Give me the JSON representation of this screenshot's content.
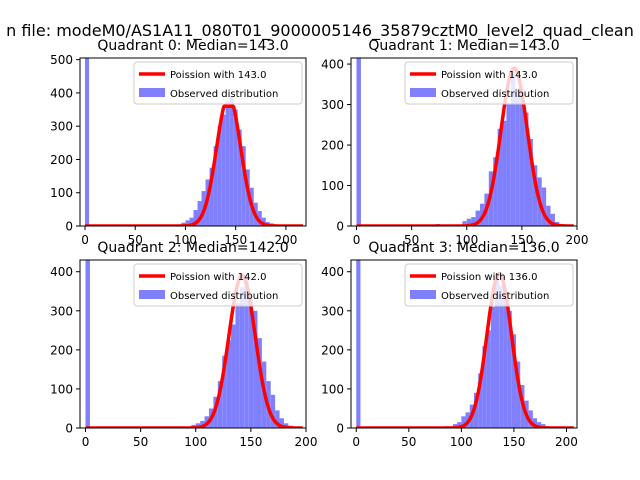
{
  "figure": {
    "suptitle": "n file: modeM0/AS1A11_080T01_9000005146_35879cztM0_level2_quad_clean"
  },
  "colors": {
    "histogram": "#8080ff",
    "poisson": "#ff0000",
    "axes": "#000000",
    "background": "#ffffff"
  },
  "chart_data": [
    {
      "type": "bar",
      "quadrant": 0,
      "title": "Quadrant 0: Median=143.0",
      "median": 143.0,
      "xlim": [
        -5,
        220
      ],
      "ylim": [
        0,
        505
      ],
      "xticks": [
        0,
        50,
        100,
        150,
        200
      ],
      "yticks": [
        0,
        100,
        200,
        300,
        400,
        500
      ],
      "legend": [
        "Poission with 143.0",
        "Observed distribution"
      ],
      "legend_loc": "upper right",
      "bin_width": 4,
      "poisson_peak": 390,
      "poisson_clip": 360,
      "bins": [
        [
          0,
          505
        ],
        [
          88,
          3
        ],
        [
          92,
          5
        ],
        [
          96,
          10
        ],
        [
          100,
          17
        ],
        [
          104,
          25
        ],
        [
          108,
          48
        ],
        [
          112,
          75
        ],
        [
          116,
          105
        ],
        [
          120,
          140
        ],
        [
          124,
          175
        ],
        [
          128,
          240
        ],
        [
          132,
          300
        ],
        [
          136,
          335
        ],
        [
          140,
          375
        ],
        [
          144,
          390
        ],
        [
          148,
          350
        ],
        [
          152,
          290
        ],
        [
          156,
          240
        ],
        [
          160,
          170
        ],
        [
          164,
          115
        ],
        [
          168,
          70
        ],
        [
          172,
          45
        ],
        [
          176,
          25
        ],
        [
          180,
          12
        ],
        [
          184,
          8
        ],
        [
          188,
          5
        ],
        [
          192,
          3
        ]
      ]
    },
    {
      "type": "bar",
      "quadrant": 1,
      "title": "Quadrant 1: Median=143.0",
      "median": 143.0,
      "xlim": [
        -5,
        200
      ],
      "ylim": [
        0,
        415
      ],
      "xticks": [
        0,
        50,
        100,
        150,
        200
      ],
      "yticks": [
        0,
        100,
        200,
        300,
        400
      ],
      "legend": [
        "Poission with 143.0",
        "Observed distribution"
      ],
      "legend_loc": "upper right",
      "bin_width": 4,
      "poisson_peak": 390,
      "poisson_clip": 400,
      "bins": [
        [
          0,
          420
        ],
        [
          72,
          5
        ],
        [
          80,
          3
        ],
        [
          88,
          3
        ],
        [
          96,
          12
        ],
        [
          100,
          18
        ],
        [
          104,
          22
        ],
        [
          108,
          38
        ],
        [
          112,
          55
        ],
        [
          116,
          80
        ],
        [
          120,
          135
        ],
        [
          124,
          170
        ],
        [
          128,
          240
        ],
        [
          132,
          260
        ],
        [
          136,
          300
        ],
        [
          140,
          380
        ],
        [
          144,
          340
        ],
        [
          148,
          340
        ],
        [
          152,
          280
        ],
        [
          156,
          215
        ],
        [
          160,
          150
        ],
        [
          164,
          120
        ],
        [
          168,
          95
        ],
        [
          172,
          50
        ],
        [
          176,
          30
        ],
        [
          180,
          10
        ],
        [
          184,
          5
        ],
        [
          188,
          3
        ]
      ]
    },
    {
      "type": "bar",
      "quadrant": 2,
      "title": "Quadrant 2: Median=142.0",
      "median": 142.0,
      "xlim": [
        -5,
        200
      ],
      "ylim": [
        0,
        430
      ],
      "xticks": [
        0,
        50,
        100,
        150,
        200
      ],
      "yticks": [
        0,
        100,
        200,
        300,
        400
      ],
      "legend": [
        "Poission with 142.0",
        "Observed distribution"
      ],
      "legend_loc": "upper right",
      "bin_width": 4,
      "poisson_peak": 390,
      "poisson_clip": 400,
      "bins": [
        [
          0,
          435
        ],
        [
          80,
          3
        ],
        [
          88,
          4
        ],
        [
          96,
          8
        ],
        [
          100,
          12
        ],
        [
          104,
          18
        ],
        [
          108,
          30
        ],
        [
          112,
          50
        ],
        [
          116,
          80
        ],
        [
          120,
          120
        ],
        [
          124,
          185
        ],
        [
          128,
          225
        ],
        [
          132,
          265
        ],
        [
          136,
          320
        ],
        [
          140,
          360
        ],
        [
          144,
          390
        ],
        [
          148,
          330
        ],
        [
          152,
          300
        ],
        [
          156,
          230
        ],
        [
          160,
          170
        ],
        [
          164,
          120
        ],
        [
          168,
          85
        ],
        [
          172,
          45
        ],
        [
          176,
          25
        ],
        [
          180,
          12
        ],
        [
          184,
          6
        ],
        [
          188,
          3
        ]
      ]
    },
    {
      "type": "bar",
      "quadrant": 3,
      "title": "Quadrant 3: Median=136.0",
      "median": 136.0,
      "xlim": [
        -5,
        210
      ],
      "ylim": [
        0,
        430
      ],
      "xticks": [
        0,
        50,
        100,
        150,
        200
      ],
      "yticks": [
        0,
        100,
        200,
        300,
        400
      ],
      "legend": [
        "Poission with 136.0",
        "Observed distribution"
      ],
      "legend_loc": "upper right",
      "bin_width": 4,
      "poisson_peak": 395,
      "poisson_clip": 400,
      "bins": [
        [
          0,
          435
        ],
        [
          76,
          4
        ],
        [
          84,
          5
        ],
        [
          92,
          10
        ],
        [
          96,
          15
        ],
        [
          100,
          30
        ],
        [
          104,
          40
        ],
        [
          108,
          60
        ],
        [
          112,
          90
        ],
        [
          116,
          140
        ],
        [
          120,
          210
        ],
        [
          124,
          250
        ],
        [
          128,
          310
        ],
        [
          132,
          390
        ],
        [
          136,
          365
        ],
        [
          140,
          350
        ],
        [
          144,
          300
        ],
        [
          148,
          240
        ],
        [
          152,
          170
        ],
        [
          156,
          110
        ],
        [
          160,
          70
        ],
        [
          164,
          45
        ],
        [
          168,
          25
        ],
        [
          172,
          15
        ],
        [
          176,
          10
        ],
        [
          180,
          5
        ],
        [
          184,
          3
        ]
      ]
    }
  ]
}
